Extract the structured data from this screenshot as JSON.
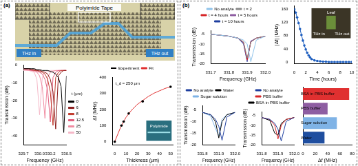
{
  "panels": [
    {
      "label": "(a)",
      "photo_labels": [
        "Polyimide Tape",
        "THz in",
        "THz out"
      ]
    },
    {
      "label": "(b)"
    }
  ],
  "chart_data": [
    {
      "type": "line",
      "x_label": "Frequency (GHz)",
      "y_label": "Transmission (dB)",
      "x": [
        329.7,
        329.8,
        329.85,
        329.9,
        329.95,
        330.0,
        330.05,
        330.1,
        330.15,
        330.2,
        330.25,
        330.3,
        330.35,
        330.4,
        330.45,
        330.5
      ],
      "xlim": [
        329.7,
        330.5
      ],
      "xticks": [
        329.7,
        {
          "value": 330,
          "label": "330.0"
        },
        330.2,
        330.5
      ],
      "ylim": [
        -45,
        0
      ],
      "yticks": [
        0,
        -10,
        -20,
        -30,
        -40
      ],
      "grid": false,
      "legend": "right",
      "legend_title": "t (μm)",
      "series": [
        {
          "name": "0",
          "color": "#000000",
          "line_style": "solid",
          "values": [
            -2,
            -2,
            -2,
            -2,
            -2.5,
            -2.5,
            -3,
            -3,
            -3,
            -3.5,
            -4,
            -5,
            -7,
            -12,
            -38,
            -6
          ]
        },
        {
          "name": "6",
          "color": "#8b1a1a",
          "line_style": "solid",
          "values": [
            -2,
            -2,
            -2.5,
            -2.5,
            -3,
            -3,
            -3.5,
            -4,
            -5,
            -8,
            -15,
            -36,
            -6,
            -4,
            -3,
            -3
          ]
        },
        {
          "name": "8",
          "color": "#c0392b",
          "line_style": "solid",
          "values": [
            -2,
            -2,
            -2.5,
            -3,
            -3,
            -3.5,
            -4,
            -5,
            -8,
            -15,
            -34,
            -7,
            -4,
            -3,
            -3,
            -3
          ]
        },
        {
          "name": "12.5",
          "color": "#e05a7a",
          "line_style": "solid",
          "values": [
            -2,
            -2.5,
            -3,
            -3,
            -3.5,
            -4,
            -5,
            -8,
            -14,
            -32,
            -7,
            -4,
            -3,
            -3,
            -3,
            -3
          ]
        },
        {
          "name": "25",
          "color": "#f08aa0",
          "line_style": "solid",
          "values": [
            -2.5,
            -3,
            -3,
            -3.5,
            -4,
            -6,
            -12,
            -30,
            -7,
            -4,
            -3.5,
            -3,
            -3,
            -3,
            -3,
            -3
          ]
        },
        {
          "name": "50",
          "color": "#f5b8c8",
          "line_style": "solid",
          "values": [
            -3,
            -3,
            -3.5,
            -4,
            -8,
            -28,
            -7,
            -4,
            -3.5,
            -3,
            -3,
            -3,
            -3,
            -3,
            -3,
            -3
          ]
        }
      ]
    },
    {
      "type": "scatter",
      "x_label": "Thickness (μm)",
      "y_label": "Δf (MHz)",
      "xlim": [
        -2,
        52
      ],
      "xticks": [
        0,
        10,
        20,
        30,
        40,
        50
      ],
      "ylim": [
        -20,
        400
      ],
      "yticks": [
        0,
        100,
        200,
        300,
        400
      ],
      "grid": false,
      "legend": "top",
      "annotations": [
        "t_d ≈ 250 μm",
        "Polyimide"
      ],
      "series": [
        {
          "name": "Experiment",
          "type": "scatter",
          "marker": "circle",
          "color": "#000000",
          "x": [
            0,
            6,
            8,
            12.5,
            25,
            50
          ],
          "values": [
            0,
            100,
            125,
            175,
            250,
            340
          ]
        },
        {
          "name": "Fit",
          "type": "line",
          "line_style": "solid",
          "color": "#e03030",
          "x": [
            0,
            5,
            10,
            15,
            20,
            25,
            30,
            35,
            40,
            45,
            50
          ],
          "values": [
            0,
            85,
            150,
            195,
            230,
            255,
            280,
            300,
            315,
            330,
            340
          ]
        }
      ]
    },
    {
      "type": "line",
      "x_label": "Frequency (GHz)",
      "y_label": "Transmission (dB)",
      "x": [
        331.7,
        331.75,
        331.8,
        331.85,
        331.88,
        331.9,
        331.92,
        331.95,
        332.0
      ],
      "xlim": [
        331.7,
        332.0
      ],
      "xticks": [
        331.7,
        331.8,
        331.9,
        {
          "value": 332,
          "label": "332.0"
        }
      ],
      "ylim": [
        -20,
        -3
      ],
      "yticks": [
        -5,
        -10,
        -15,
        -20
      ],
      "grid": false,
      "legend": "top",
      "series": [
        {
          "name": "No analyte",
          "color": "#8fc3ea",
          "line_style": "solid",
          "values": [
            -5,
            -5.5,
            -6,
            -7,
            -8,
            -10,
            -19,
            -8,
            -6
          ]
        },
        {
          "name": "t = 2",
          "color": "#888888",
          "line_style": "solid",
          "values": [
            -5,
            -5.5,
            -6,
            -7,
            -9,
            -17,
            -9,
            -7,
            -6
          ]
        },
        {
          "name": "t = 4 hours",
          "color": "#d62728",
          "line_style": "solid",
          "values": [
            -5,
            -5.5,
            -6,
            -7,
            -9,
            -18,
            -9,
            -7,
            -6
          ]
        },
        {
          "name": "t = 5 hours",
          "color": "#8e5ea2",
          "line_style": "solid",
          "values": [
            -5,
            -5.5,
            -6,
            -7,
            -9.5,
            -18.5,
            -8.5,
            -7,
            -6
          ]
        },
        {
          "name": "t = 10 hours",
          "color": "#1f3f9f",
          "line_style": "solid",
          "values": [
            -5,
            -5.5,
            -6,
            -7,
            -10,
            -19,
            -8.5,
            -7,
            -6
          ]
        }
      ]
    },
    {
      "type": "line",
      "x_label": "Time (hours)",
      "y_label": "|Δf| (MHz)",
      "x": [
        0,
        0.25,
        0.5,
        0.75,
        1,
        1.25,
        1.5,
        1.75,
        2,
        2.25,
        2.5,
        2.75,
        3,
        3.5,
        4,
        4.5,
        5,
        5.5,
        6,
        6.5,
        7,
        7.5,
        8,
        8.5,
        9,
        9.5,
        10
      ],
      "values": [
        160,
        150,
        135,
        118,
        100,
        82,
        65,
        50,
        38,
        28,
        20,
        14,
        9,
        5,
        3,
        2,
        1,
        1,
        0,
        0,
        0,
        0,
        0,
        0,
        0,
        0,
        0
      ],
      "color": "#1f5fbf",
      "marker": "circle",
      "line_style": "solid",
      "xlim": [
        0,
        10
      ],
      "xticks": [
        0,
        2,
        4,
        6,
        8,
        10
      ],
      "ylim": [
        -5,
        170
      ],
      "yticks": [
        0,
        40,
        80,
        120,
        160
      ],
      "grid": false,
      "annotations": [
        "THz in",
        "THz out",
        "Leaf"
      ]
    },
    {
      "type": "line",
      "x_label": "Frequency (GHz)",
      "y_label": "Transmission (dB)",
      "x": [
        331.8,
        331.85,
        331.88,
        331.9,
        331.92,
        331.95,
        332.0
      ],
      "xlim": [
        331.8,
        332.0
      ],
      "xticks": [
        331.8,
        331.9,
        {
          "value": 332,
          "label": "332.0"
        }
      ],
      "ylim": [
        -20,
        -3
      ],
      "yticks": [
        -5,
        -10,
        -15,
        -20
      ],
      "grid": false,
      "legend": "top",
      "series": [
        {
          "name": "No analyte",
          "color": "#1f3f9f",
          "line_style": "solid",
          "values": [
            -6,
            -7,
            -9,
            -12,
            -18,
            -8,
            -6
          ]
        },
        {
          "name": "Water",
          "color": "#000000",
          "line_style": "solid",
          "values": [
            -6,
            -7,
            -10,
            -17,
            -10,
            -7,
            -6
          ]
        },
        {
          "name": "Sugar solution",
          "color": "#7fb3e6",
          "line_style": "solid",
          "values": [
            -6,
            -7.5,
            -13,
            -16,
            -9,
            -7,
            -6
          ]
        }
      ]
    },
    {
      "type": "line",
      "x_label": "Frequency (GHz)",
      "y_label": "Transmission (dB)",
      "x": [
        331.8,
        331.85,
        331.88,
        331.9,
        331.92,
        331.95,
        332.0
      ],
      "xlim": [
        331.8,
        332.0
      ],
      "xticks": [
        331.8,
        331.9,
        {
          "value": 332,
          "label": "332.0"
        }
      ],
      "ylim": [
        -20,
        -3
      ],
      "yticks": [
        -5,
        -10,
        -15,
        -20
      ],
      "grid": false,
      "legend": "top",
      "series": [
        {
          "name": "No analyte",
          "color": "#1f3f9f",
          "line_style": "solid",
          "values": [
            -6,
            -7,
            -9,
            -12,
            -18,
            -8,
            -6
          ]
        },
        {
          "name": "PBS buffer",
          "color": "#d62728",
          "line_style": "solid",
          "values": [
            -6,
            -7,
            -10,
            -17,
            -10,
            -7,
            -6
          ]
        },
        {
          "name": "BSA in PBS buffer",
          "color": "#000000",
          "line_style": "solid",
          "values": [
            -6,
            -7.5,
            -14,
            -15,
            -9,
            -7,
            -6
          ]
        }
      ]
    },
    {
      "type": "bar",
      "orientation": "horizontal",
      "x_label": "Δf (MHz)",
      "categories": [
        "BSA in PBS buffer",
        "PBS buffer",
        "Sugar solution",
        "Water"
      ],
      "values": [
        75,
        40,
        55,
        35
      ],
      "colors": [
        "#e03030",
        "#8e5ea2",
        "#7fb3e6",
        "#1f4e9f"
      ],
      "xlim": [
        0,
        80
      ],
      "xticks": [
        0,
        20,
        40,
        60,
        80
      ],
      "grid": false
    }
  ]
}
